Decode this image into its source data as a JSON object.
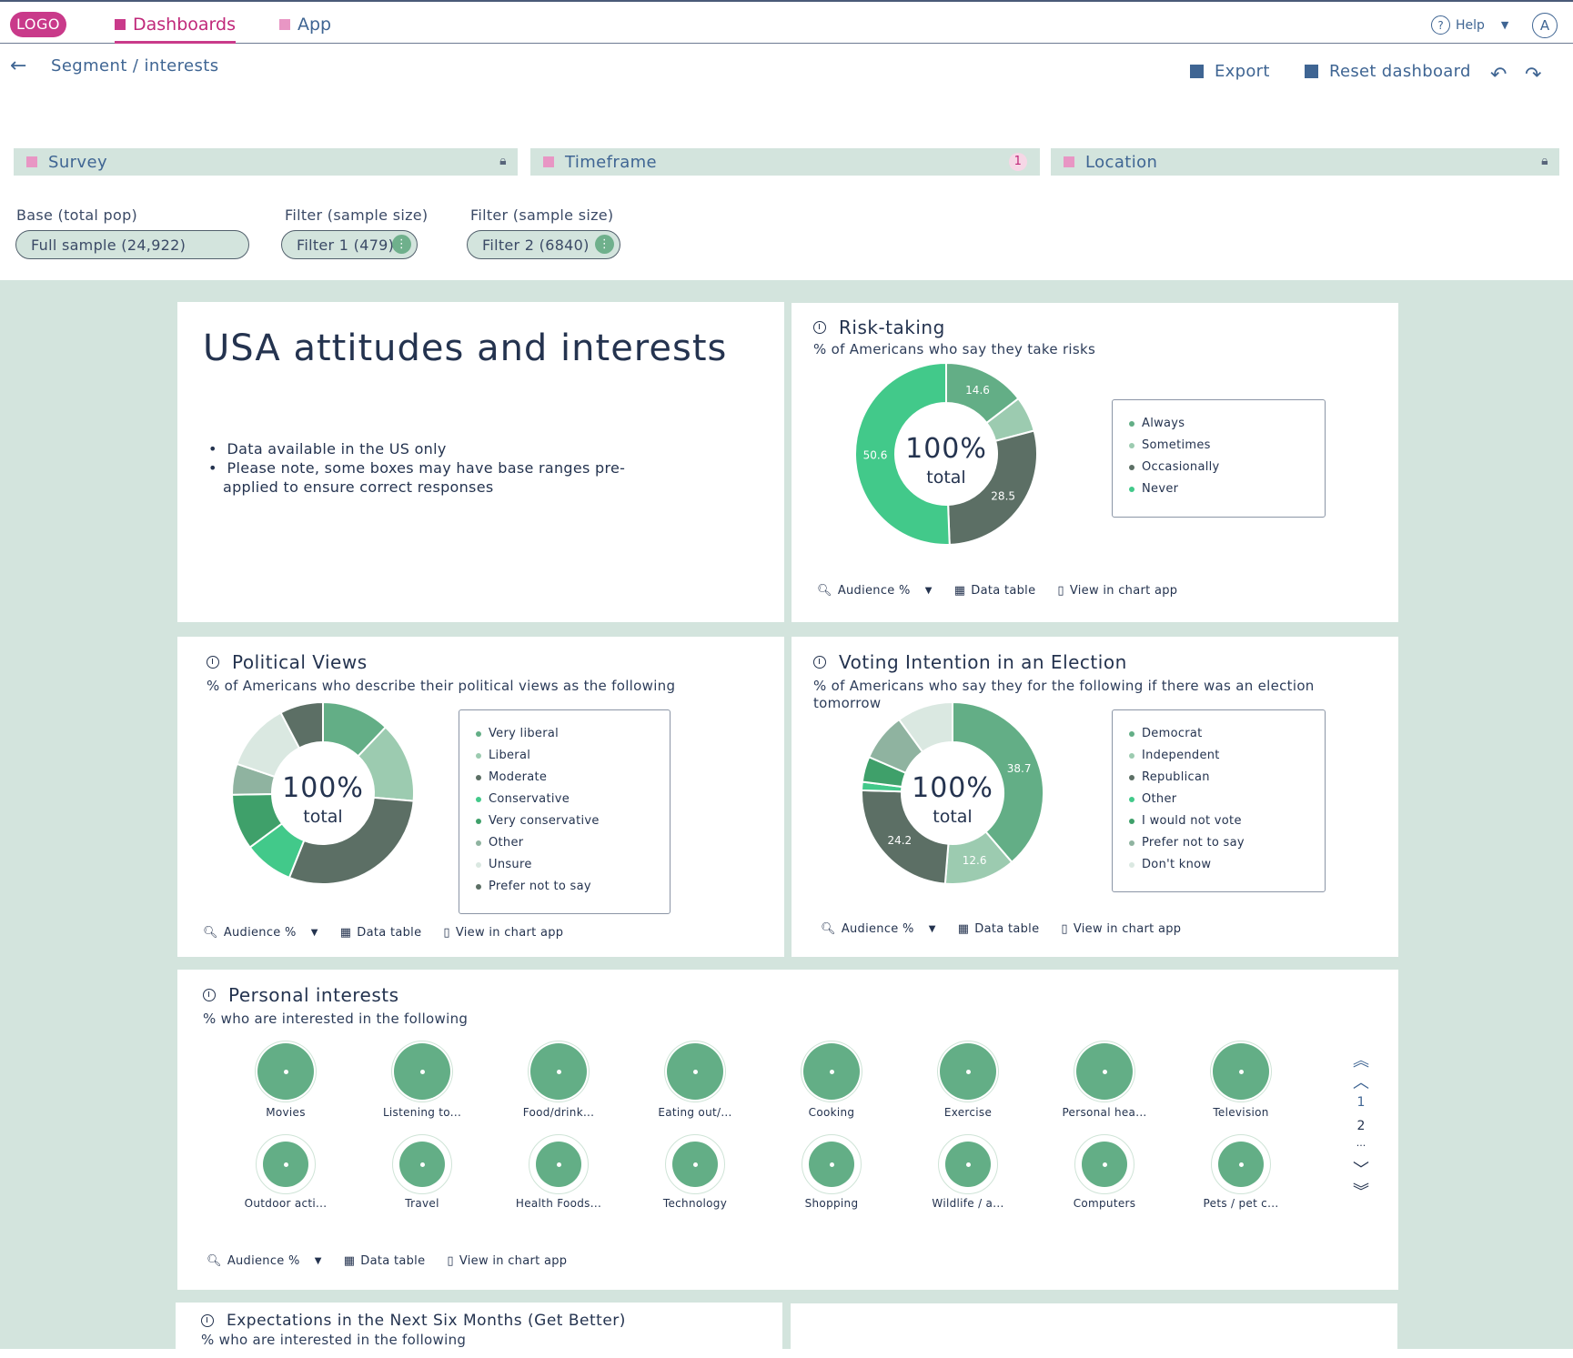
{
  "app": {
    "logo": "LOGO"
  },
  "nav": {
    "dashboards": "Dashboards",
    "app": "App",
    "help": "Help",
    "help_icon": "?",
    "avatar": "A"
  },
  "breadcrumb": "Segment / interests",
  "toolbar": {
    "export": "Export",
    "reset": "Reset dashboard"
  },
  "filters": {
    "survey": "Survey",
    "timeframe": "Timeframe",
    "timeframe_count": "1",
    "location": "Location"
  },
  "base": {
    "base_label": "Base (total pop)",
    "base_value": "Full sample (24,922)",
    "filter1_label": "Filter (sample size)",
    "filter1_value": "Filter 1 (479)",
    "filter2_label": "Filter (sample size)",
    "filter2_value": "Filter 2 (6840)"
  },
  "controls": {
    "audience": "Audience %",
    "data_table": "Data table",
    "view_chart": "View in chart app"
  },
  "intro": {
    "title": "USA attitudes and interests",
    "bullets": [
      "Data available in the US only",
      "Please note, some boxes may have base ranges pre-",
      "applied to ensure correct responses"
    ]
  },
  "center": {
    "pct": "100%",
    "total": "total"
  },
  "colors": {
    "brand": "#c93a8a",
    "nav_blue": "#3f6593",
    "canvas": "#d3e4dd",
    "bubble": "#63ae86"
  },
  "chart_data": [
    {
      "id": "risk",
      "type": "pie",
      "title": "Risk-taking",
      "subtitle": "% of Americans who say they take risks",
      "categories": [
        "Always",
        "Sometimes",
        "Occasionally",
        "Never"
      ],
      "values": [
        14.6,
        6.3,
        28.5,
        50.6
      ],
      "labels": [
        "14.6",
        "",
        "28.5",
        "50.6"
      ],
      "colors": [
        "#63ae86",
        "#9ccbb0",
        "#5c6f65",
        "#42c98a"
      ]
    },
    {
      "id": "political",
      "type": "pie",
      "title": "Political Views",
      "subtitle": "% of Americans who describe their political views as the following",
      "categories": [
        "Very liberal",
        "Liberal",
        "Moderate",
        "Conservative",
        "Very conservative",
        "Other",
        "Unsure",
        "Prefer not to say"
      ],
      "values": [
        11,
        13,
        27,
        8,
        9,
        5,
        11,
        7
      ],
      "labels": [
        "",
        "",
        "",
        "",
        "",
        "",
        "",
        ""
      ],
      "colors": [
        "#63ae86",
        "#9ccbb0",
        "#5c6f65",
        "#42c98a",
        "#3fa06a",
        "#8fb3a0",
        "#dae8e1",
        "#5c6f65"
      ]
    },
    {
      "id": "voting",
      "type": "pie",
      "title": "Voting Intention in an Election",
      "subtitle": "% of Americans who say they for the following if there was an election tomorrow",
      "categories": [
        "Democrat",
        "Independent",
        "Republican",
        "Other",
        "I would not vote",
        "Prefer not to say",
        "Don't know"
      ],
      "values": [
        38.7,
        12.6,
        24.2,
        1.5,
        4.5,
        8.5,
        10
      ],
      "labels": [
        "38.7",
        "12.6",
        "24.2",
        "",
        "",
        "",
        ""
      ],
      "colors": [
        "#63ae86",
        "#9ccbb0",
        "#5c6f65",
        "#42c98a",
        "#3fa06a",
        "#8fb3a0",
        "#dae8e1"
      ]
    }
  ],
  "interests": {
    "title": "Personal interests",
    "subtitle": "% who are interested in the following",
    "items": [
      "Movies",
      "Listening to...",
      "Food/drink...",
      "Eating out/...",
      "Cooking",
      "Exercise",
      "Personal hea...",
      "Television",
      "Outdoor acti...",
      "Travel",
      "Health Foods...",
      "Technology",
      "Shopping",
      "Wildlife / a...",
      "Computers",
      "Pets / pet c..."
    ],
    "pages": [
      "1",
      "2",
      "..."
    ]
  },
  "expectations": {
    "title": "Expectations in the Next Six Months (Get Better)",
    "subtitle": "% who are interested in the following"
  }
}
